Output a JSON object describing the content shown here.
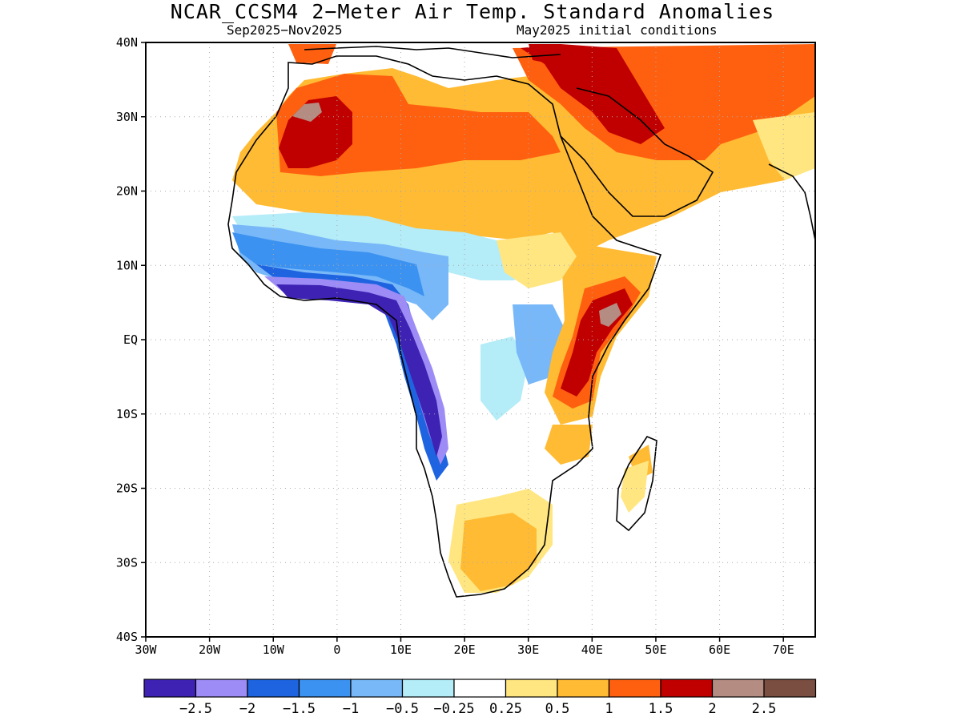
{
  "title": "NCAR_CCSM4 2−Meter Air Temp. Standard Anomalies",
  "subtitle_left": "Sep2025−Nov2025",
  "subtitle_right": "May2025 initial conditions",
  "map": {
    "lon_range": [
      -30,
      75
    ],
    "lat_range": [
      -40,
      40
    ],
    "lat_ticks": [
      {
        "lat": 40,
        "label": "40N"
      },
      {
        "lat": 30,
        "label": "30N"
      },
      {
        "lat": 20,
        "label": "20N"
      },
      {
        "lat": 10,
        "label": "10N"
      },
      {
        "lat": 0,
        "label": "EQ"
      },
      {
        "lat": -10,
        "label": "10S"
      },
      {
        "lat": -20,
        "label": "20S"
      },
      {
        "lat": -30,
        "label": "30S"
      },
      {
        "lat": -40,
        "label": "40S"
      }
    ],
    "lon_ticks": [
      {
        "lon": -30,
        "label": "30W"
      },
      {
        "lon": -20,
        "label": "20W"
      },
      {
        "lon": -10,
        "label": "10W"
      },
      {
        "lon": 0,
        "label": "0"
      },
      {
        "lon": 10,
        "label": "10E"
      },
      {
        "lon": 20,
        "label": "20E"
      },
      {
        "lon": 30,
        "label": "30E"
      },
      {
        "lon": 40,
        "label": "40E"
      },
      {
        "lon": 50,
        "label": "50E"
      },
      {
        "lon": 60,
        "label": "60E"
      },
      {
        "lon": 70,
        "label": "70E"
      }
    ],
    "grid": true
  },
  "colorbar": {
    "colors": [
      "#3e22b4",
      "#9d8cf5",
      "#1e64e0",
      "#3c92f0",
      "#78b8f8",
      "#b4ecf8",
      "#ffffff",
      "#ffe680",
      "#ffbb33",
      "#ff6010",
      "#c00000",
      "#b48c82",
      "#7a4e40"
    ],
    "labels": [
      "−2.5",
      "−2",
      "−1.5",
      "−1",
      "−0.5",
      "−0.25",
      "0.25",
      "0.5",
      "1",
      "1.5",
      "2",
      "2.5"
    ]
  }
}
